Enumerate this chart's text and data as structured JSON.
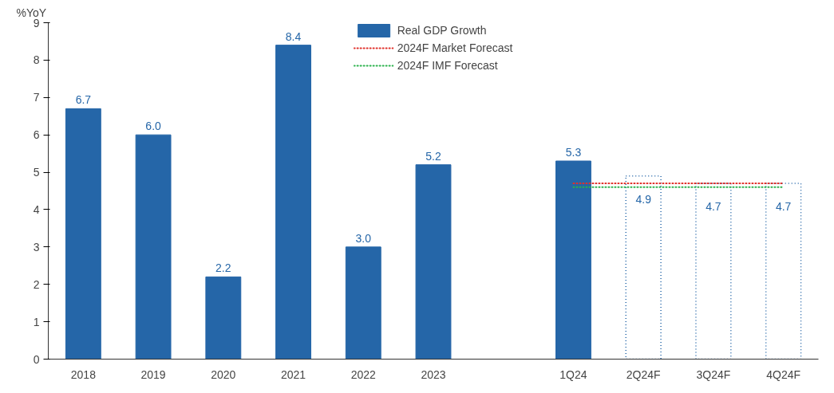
{
  "chart_data": {
    "type": "bar",
    "ylabel": "%YoY",
    "categories": [
      "2018",
      "2019",
      "2020",
      "2021",
      "2022",
      "2023",
      null,
      "1Q24",
      "2Q24F",
      "3Q24F",
      "4Q24F"
    ],
    "series": [
      {
        "name": "Real GDP Growth",
        "color": "#2566a8",
        "values": [
          6.7,
          6.0,
          2.2,
          8.4,
          3.0,
          5.2,
          null,
          5.3,
          null,
          null,
          null
        ],
        "value_labels": [
          "6.7",
          "6.0",
          "2.2",
          "8.4",
          "3.0",
          "5.2",
          null,
          "5.3",
          null,
          null,
          null
        ]
      },
      {
        "color": "#2566a8",
        "line_style": "dotted",
        "values": [
          null,
          null,
          null,
          null,
          null,
          null,
          null,
          null,
          4.9,
          4.7,
          4.7
        ],
        "value_labels": [
          null,
          null,
          null,
          null,
          null,
          null,
          null,
          null,
          "4.9",
          "4.7",
          "4.7"
        ]
      },
      {
        "name": "2024F Market Forecast",
        "type": "line",
        "line_style": "dotted",
        "color": "#e0302a",
        "values": [
          null,
          null,
          null,
          null,
          null,
          null,
          null,
          4.7,
          4.7,
          4.7,
          4.7
        ]
      },
      {
        "name": "2024F IMF Forecast",
        "type": "line",
        "line_style": "dotted",
        "color": "#2bb24c",
        "values": [
          null,
          null,
          null,
          null,
          null,
          null,
          null,
          4.6,
          4.6,
          4.6,
          4.6
        ]
      }
    ],
    "ylim": [
      0,
      9
    ],
    "yticks": [
      0,
      1,
      2,
      3,
      4,
      5,
      6,
      7,
      8,
      9
    ],
    "grid": false,
    "legend": "top"
  }
}
